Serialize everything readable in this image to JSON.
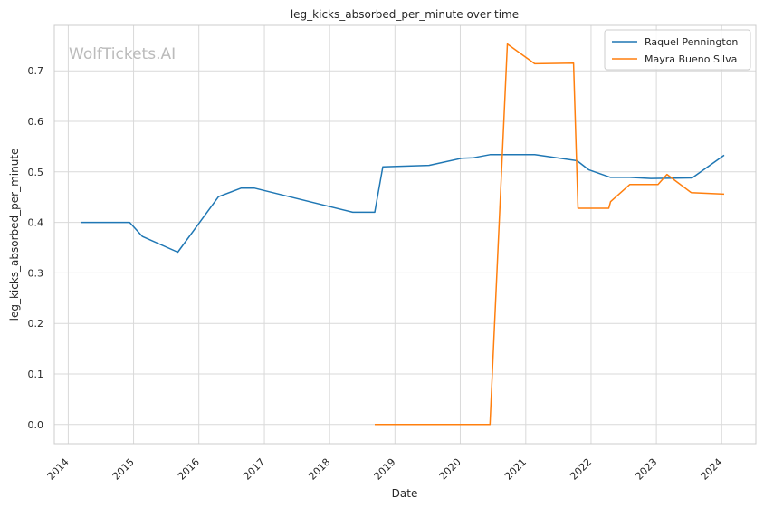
{
  "chart_data": {
    "type": "line",
    "title": "leg_kicks_absorbed_per_minute over time",
    "xlabel": "Date",
    "ylabel": "leg_kicks_absorbed_per_minute",
    "watermark": "WolfTickets.AI",
    "x_ticks": [
      "2014",
      "2015",
      "2016",
      "2017",
      "2018",
      "2019",
      "2020",
      "2021",
      "2022",
      "2023",
      "2024"
    ],
    "y_ticks": [
      "0.0",
      "0.1",
      "0.2",
      "0.3",
      "0.4",
      "0.5",
      "0.6",
      "0.7"
    ],
    "xlim": [
      "2013-10-15",
      "2024-07-10"
    ],
    "ylim": [
      -0.038,
      0.79
    ],
    "grid": true,
    "legend_position": "top-right",
    "series": [
      {
        "name": "Raquel Pennington",
        "color": "#1f77b4",
        "points": [
          [
            "2014-03-15",
            0.4
          ],
          [
            "2014-12-10",
            0.4
          ],
          [
            "2015-02-20",
            0.372
          ],
          [
            "2015-09-05",
            0.341
          ],
          [
            "2016-04-20",
            0.451
          ],
          [
            "2016-08-25",
            0.468
          ],
          [
            "2016-11-05",
            0.468
          ],
          [
            "2018-05-10",
            0.42
          ],
          [
            "2018-09-10",
            0.42
          ],
          [
            "2018-10-25",
            0.51
          ],
          [
            "2019-07-10",
            0.513
          ],
          [
            "2020-01-10",
            0.527
          ],
          [
            "2020-03-15",
            0.528
          ],
          [
            "2020-06-15",
            0.534
          ],
          [
            "2021-02-20",
            0.534
          ],
          [
            "2021-10-15",
            0.522
          ],
          [
            "2021-12-20",
            0.504
          ],
          [
            "2022-04-20",
            0.489
          ],
          [
            "2022-08-05",
            0.489
          ],
          [
            "2022-12-01",
            0.487
          ],
          [
            "2023-07-20",
            0.488
          ],
          [
            "2024-01-15",
            0.533
          ]
        ]
      },
      {
        "name": "Mayra Bueno Silva",
        "color": "#ff7f0e",
        "points": [
          [
            "2018-09-10",
            0.0
          ],
          [
            "2020-06-15",
            0.0
          ],
          [
            "2020-09-20",
            0.753
          ],
          [
            "2021-02-20",
            0.714
          ],
          [
            "2021-09-25",
            0.715
          ],
          [
            "2021-10-20",
            0.428
          ],
          [
            "2022-04-10",
            0.428
          ],
          [
            "2022-04-20",
            0.441
          ],
          [
            "2022-08-05",
            0.475
          ],
          [
            "2023-01-10",
            0.475
          ],
          [
            "2023-03-01",
            0.495
          ],
          [
            "2023-07-15",
            0.459
          ],
          [
            "2024-01-15",
            0.456
          ]
        ]
      }
    ]
  }
}
